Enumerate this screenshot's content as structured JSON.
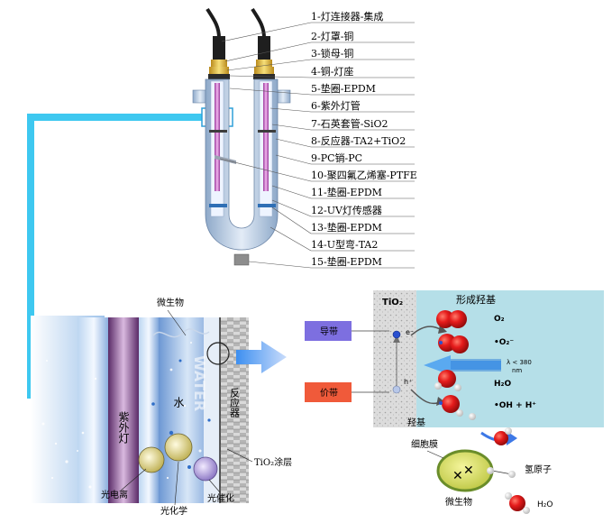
{
  "parts": [
    "1-灯连接器-集成",
    "2-灯罩-铜",
    "3-锁母-铜",
    "4-铜-灯座",
    "5-垫圈-EPDM",
    "6-紫外灯管",
    "7-石英套管-SiO2",
    "8-反应器-TA2+TiO2",
    "9-PC销-PC",
    "10-聚四氟乙烯塞-PTFE",
    "11-垫圈-EPDM",
    "12-UV灯传感器",
    "13-垫圈-EPDM",
    "14-U型弯-TA2",
    "15-垫圈-EPDM"
  ],
  "cross_section": {
    "microbe_label": "微生物",
    "uv_lamp_label": "紫外灯",
    "water_label": "水",
    "water_watermark": "WATER",
    "reactor_label": "反应器",
    "tio2_coating_label": "TiO₂涂层",
    "photo_ionization_label": "光电离",
    "photochemistry_label": "光化学",
    "photocatalysis_label": "光催化"
  },
  "mechanism": {
    "tio2_label": "TiO₂",
    "radical_title": "形成羟基",
    "conduction_band_label": "导带",
    "valence_band_label": "价带",
    "electron_label": "e⁻",
    "hole_label": "h⁺",
    "wavelength_label": "λ < 380",
    "wavelength_unit": "nm",
    "species": [
      "O₂",
      "•O₂⁻",
      "H₂O",
      "•OH + H⁺"
    ],
    "hydroxyl_label": "羟基",
    "cell_membrane_label": "细胞膜",
    "hydrogen_atom_label": "氢原子",
    "microbe_label": "微生物",
    "h2o_label": "H₂O"
  },
  "colors": {
    "cyan_arrow": "#3ec8f0",
    "conduction_band": "#7d6fe0",
    "valence_band": "#f05a3a",
    "red_sphere": "#e01818",
    "mechanism_panel": "#b5dfe8"
  }
}
